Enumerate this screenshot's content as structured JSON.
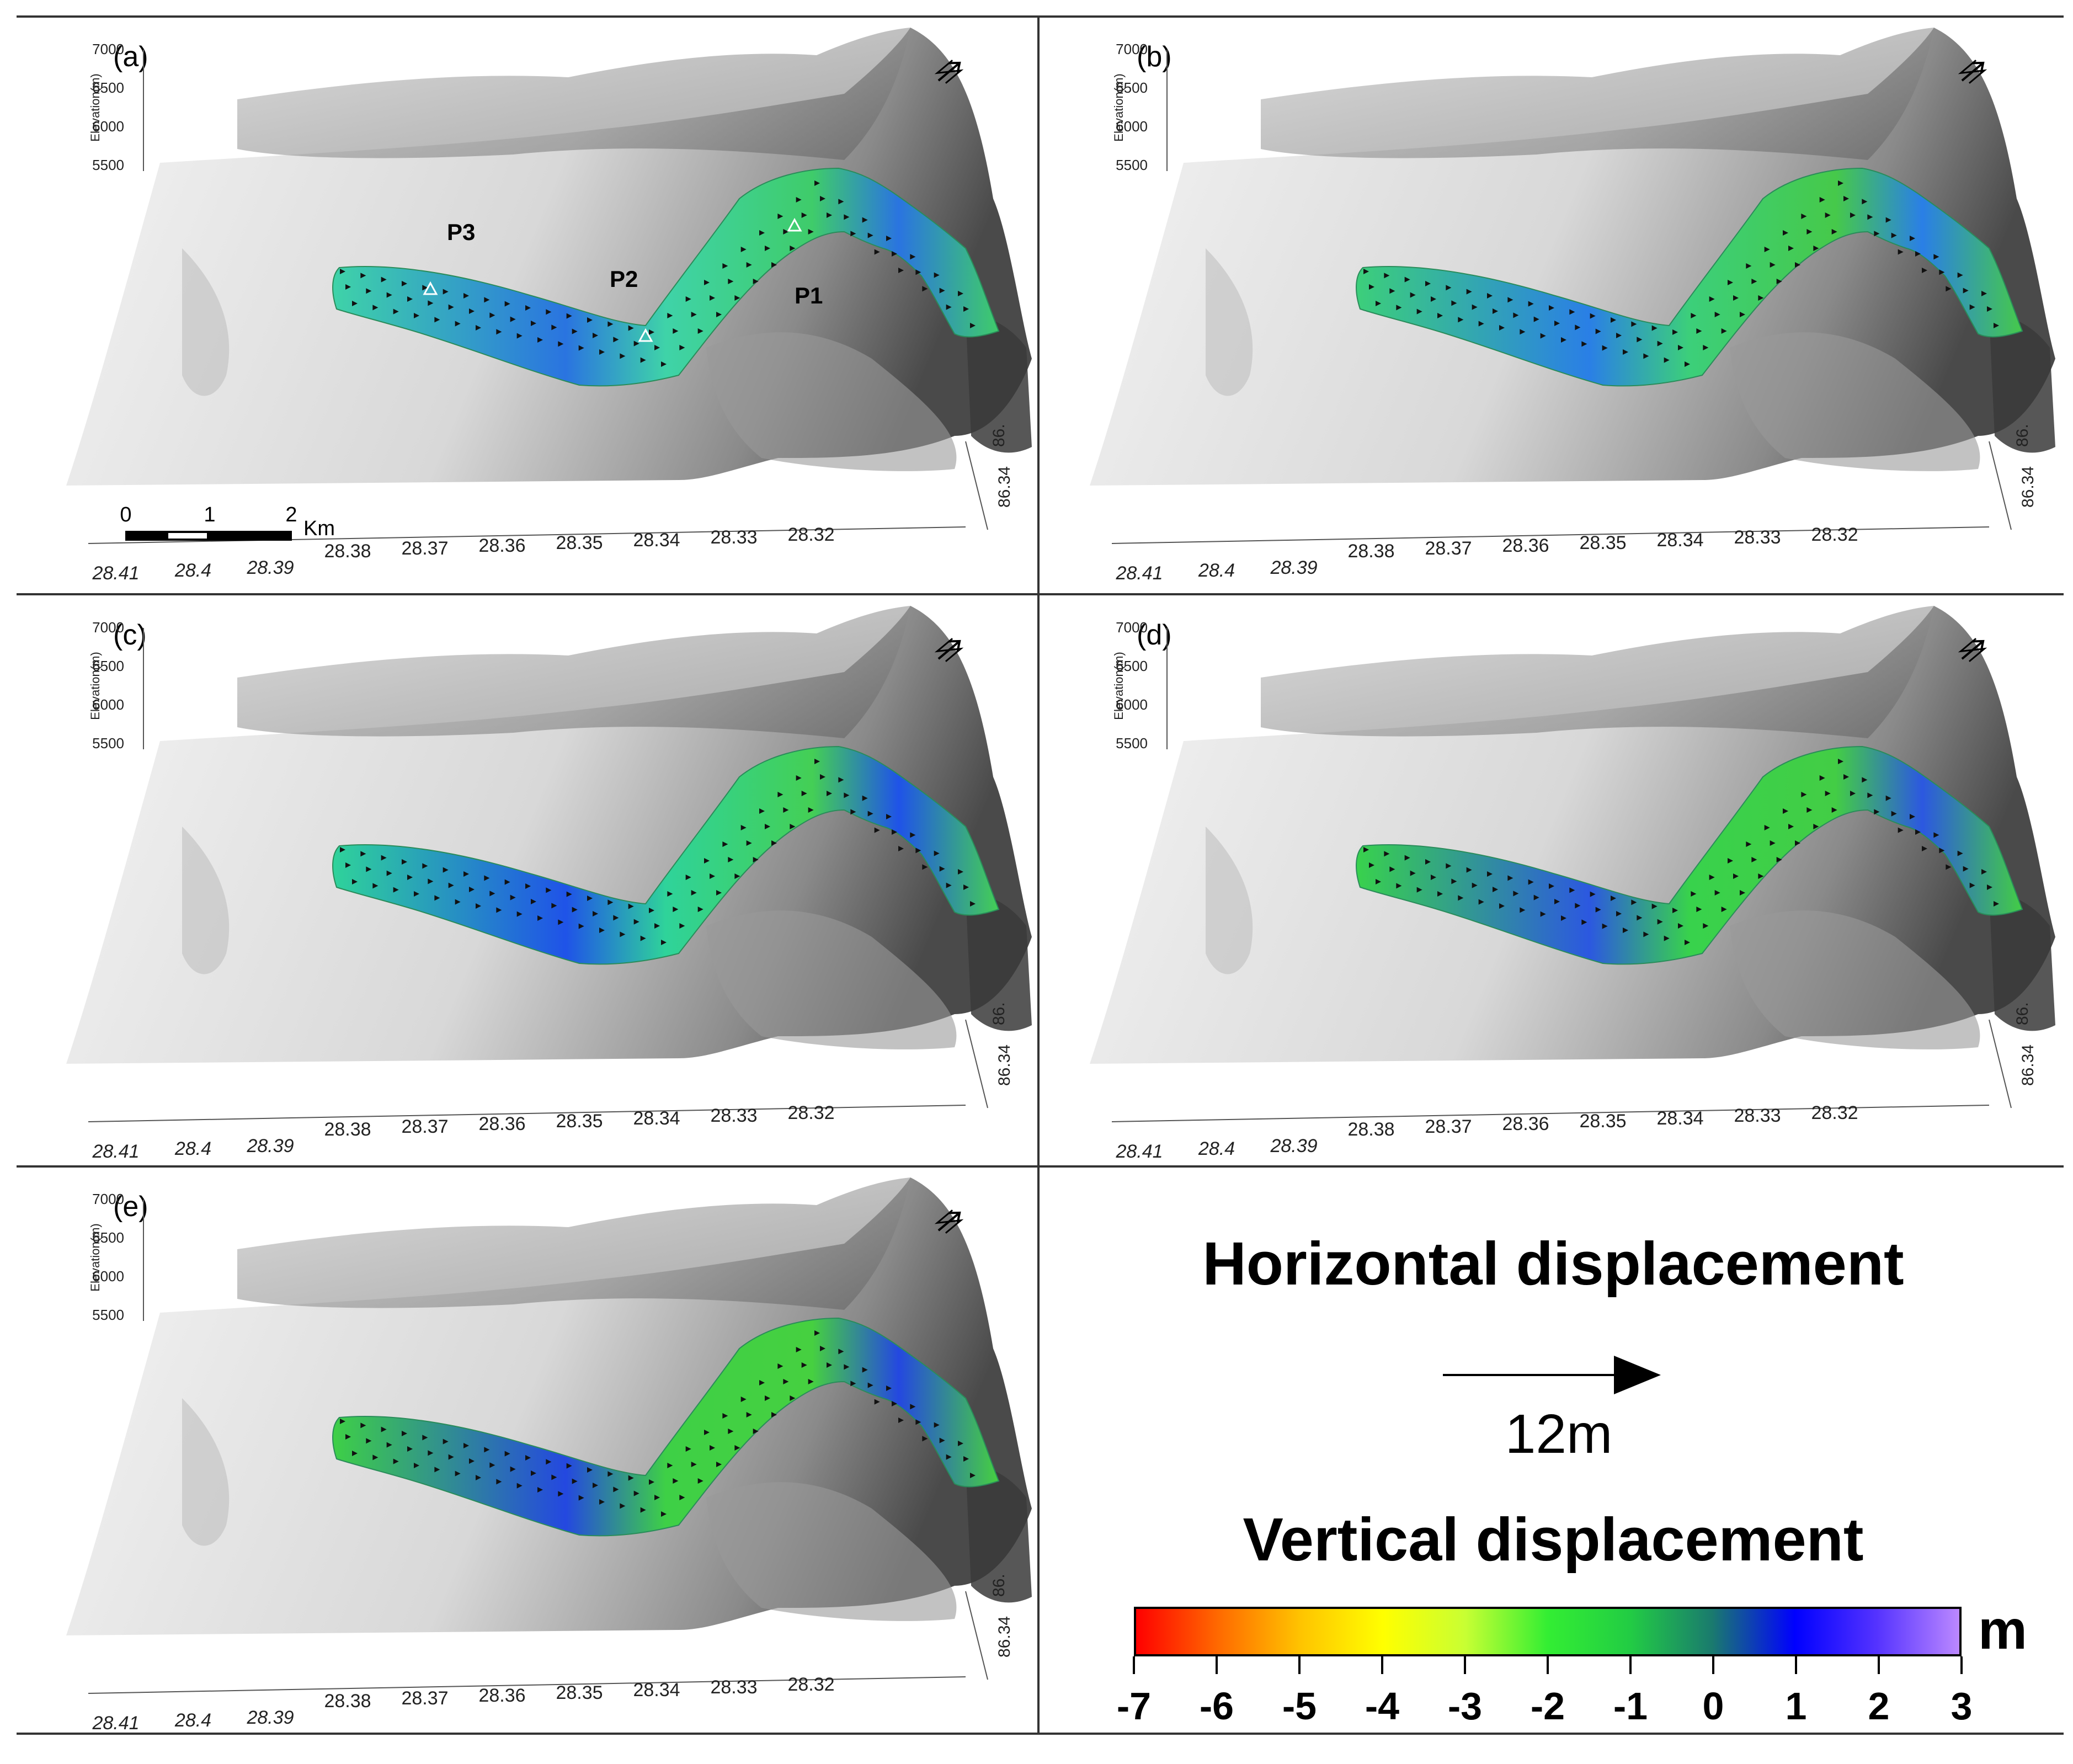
{
  "figure": {
    "panels": [
      {
        "label": "(a)",
        "overlay": "a"
      },
      {
        "label": "(b)",
        "overlay": "b"
      },
      {
        "label": "(c)",
        "overlay": "c"
      },
      {
        "label": "(d)",
        "overlay": "d"
      },
      {
        "label": "(e)",
        "overlay": "e"
      }
    ],
    "elevation_axis": {
      "title": "Elevation(m)",
      "ticks": [
        "7000",
        "6500",
        "6000",
        "5500"
      ]
    },
    "latitude_ticks": [
      "28.41",
      "28.4",
      "28.39",
      "28.38",
      "28.37",
      "28.36",
      "28.35",
      "28.34",
      "28.33",
      "28.32"
    ],
    "longitude_ticks": [
      "86.",
      "86.34"
    ],
    "points": [
      {
        "name": "P1"
      },
      {
        "name": "P2"
      },
      {
        "name": "P3"
      }
    ],
    "scale_bar": {
      "ticks": [
        "0",
        "1",
        "2"
      ],
      "unit": "Km"
    },
    "north_arrow_icon": "north-arrow-icon"
  },
  "legend": {
    "horizontal_title": "Horizontal displacement",
    "arrow_value": "12m",
    "vertical_title": "Vertical displacement",
    "unit": "m",
    "colorbar": {
      "min": -7,
      "max": 3,
      "ticks": [
        "-7",
        "-6",
        "-5",
        "-4",
        "-3",
        "-2",
        "-1",
        "0",
        "1",
        "2",
        "3"
      ],
      "colors": [
        "#ff0000",
        "#ff6a00",
        "#ffc400",
        "#ffff00",
        "#c8ff33",
        "#33ee33",
        "#22cc44",
        "#1a7a6e",
        "#0000ff",
        "#5533ff",
        "#bb88ff"
      ]
    }
  },
  "overlay_styles": {
    "a": {
      "main": "#3fd3a8",
      "blue": "#2a74e0",
      "green": "#3fcc6a"
    },
    "b": {
      "main": "#3ccf7a",
      "blue": "#2a7fe6",
      "green": "#46c94a"
    },
    "c": {
      "main": "#2fd39a",
      "blue": "#1f53e8",
      "green": "#44cf55"
    },
    "d": {
      "main": "#38d24c",
      "blue": "#2c58e0",
      "green": "#43cd45"
    },
    "e": {
      "main": "#3ed046",
      "blue": "#2448e0",
      "green": "#46d040"
    }
  }
}
